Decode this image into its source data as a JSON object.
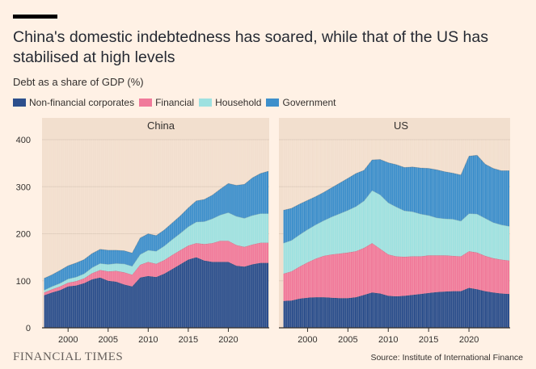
{
  "header": {
    "title": "China's domestic indebtedness has soared, while that of the US has stabilised at high levels",
    "subtitle": "Debt as a share of GDP (%)"
  },
  "footer": {
    "brand": "FINANCIAL TIMES",
    "source": "Source: Institute of International Finance"
  },
  "legend": [
    {
      "label": "Non-financial corporates",
      "color": "#2c4f8c"
    },
    {
      "label": "Financial",
      "color": "#f07a9a"
    },
    {
      "label": "Household",
      "color": "#9ee1e0"
    },
    {
      "label": "Government",
      "color": "#3d8fcb"
    }
  ],
  "chart_data": [
    {
      "type": "area",
      "title": "China",
      "stacked": true,
      "ylabel": "Debt as a share of GDP (%)",
      "ylim": [
        0,
        400
      ],
      "yticks": [
        0,
        100,
        200,
        300,
        400
      ],
      "xlim": [
        1996.75,
        2025
      ],
      "xticks": [
        2000,
        2005,
        2010,
        2015,
        2020
      ],
      "x": [
        1997,
        1998,
        1999,
        2000,
        2001,
        2002,
        2003,
        2004,
        2005,
        2006,
        2007,
        2008,
        2009,
        2010,
        2011,
        2012,
        2013,
        2014,
        2015,
        2016,
        2017,
        2018,
        2019,
        2020,
        2021,
        2022,
        2023,
        2024,
        2025
      ],
      "series": [
        {
          "name": "Non-financial corporates",
          "values": [
            69,
            75,
            80,
            88,
            90,
            95,
            103,
            107,
            100,
            98,
            92,
            88,
            107,
            110,
            108,
            115,
            125,
            135,
            145,
            150,
            143,
            140,
            140,
            140,
            132,
            130,
            135,
            138,
            138
          ]
        },
        {
          "name": "Financial",
          "values": [
            6,
            7,
            8,
            8,
            9,
            10,
            13,
            16,
            20,
            23,
            26,
            25,
            27,
            30,
            28,
            29,
            30,
            30,
            30,
            30,
            35,
            40,
            45,
            45,
            44,
            42,
            42,
            43,
            43
          ]
        },
        {
          "name": "Household",
          "values": [
            5,
            6,
            7,
            8,
            9,
            10,
            12,
            14,
            15,
            16,
            18,
            18,
            22,
            25,
            27,
            30,
            33,
            36,
            40,
            45,
            48,
            52,
            55,
            60,
            61,
            61,
            62,
            62,
            62
          ]
        },
        {
          "name": "Government",
          "values": [
            25,
            25,
            27,
            28,
            30,
            30,
            30,
            30,
            30,
            28,
            28,
            28,
            35,
            35,
            33,
            34,
            35,
            37,
            40,
            45,
            47,
            50,
            55,
            62,
            66,
            72,
            80,
            85,
            90
          ]
        }
      ]
    },
    {
      "type": "area",
      "title": "US",
      "stacked": true,
      "ylabel": "Debt as a share of GDP (%)",
      "ylim": [
        0,
        400
      ],
      "yticks": [
        0,
        100,
        200,
        300,
        400
      ],
      "xlim": [
        1996.75,
        2025
      ],
      "xticks": [
        2000,
        2005,
        2010,
        2015,
        2020
      ],
      "x": [
        1997,
        1998,
        1999,
        2000,
        2001,
        2002,
        2003,
        2004,
        2005,
        2006,
        2007,
        2008,
        2009,
        2010,
        2011,
        2012,
        2013,
        2014,
        2015,
        2016,
        2017,
        2018,
        2019,
        2020,
        2021,
        2022,
        2023,
        2024,
        2025
      ],
      "series": [
        {
          "name": "Non-financial corporates",
          "values": [
            57,
            58,
            62,
            64,
            65,
            65,
            64,
            63,
            63,
            65,
            70,
            75,
            73,
            68,
            67,
            68,
            70,
            72,
            74,
            76,
            77,
            78,
            78,
            85,
            82,
            78,
            75,
            73,
            72
          ]
        },
        {
          "name": "Financial",
          "values": [
            58,
            62,
            68,
            75,
            82,
            88,
            92,
            95,
            97,
            98,
            100,
            105,
            95,
            88,
            85,
            83,
            82,
            80,
            80,
            78,
            77,
            75,
            74,
            78,
            78,
            75,
            73,
            72,
            71
          ]
        },
        {
          "name": "Household",
          "values": [
            65,
            66,
            68,
            70,
            72,
            75,
            80,
            85,
            90,
            95,
            100,
            112,
            115,
            110,
            105,
            98,
            95,
            90,
            85,
            80,
            78,
            78,
            75,
            80,
            82,
            80,
            76,
            74,
            73
          ]
        },
        {
          "name": "Government",
          "values": [
            70,
            68,
            65,
            62,
            60,
            60,
            62,
            65,
            68,
            70,
            65,
            65,
            75,
            85,
            90,
            92,
            95,
            98,
            100,
            102,
            100,
            98,
            98,
            122,
            125,
            115,
            115,
            115,
            118
          ]
        }
      ]
    }
  ]
}
